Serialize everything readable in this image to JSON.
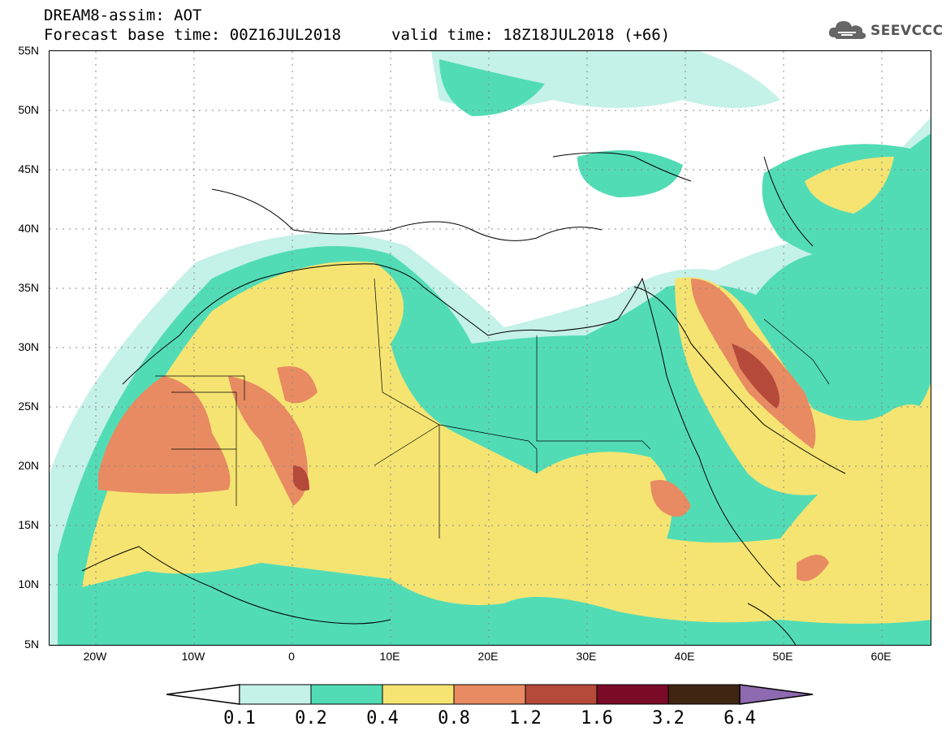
{
  "header": {
    "title": "DREAM8-assim: AOT",
    "base_time": "Forecast base time: 00Z16JUL2018",
    "valid_time": "valid time: 18Z18JUL2018 (+66)"
  },
  "logo": {
    "text": "SEEVCCC",
    "icon": "cloud-icon"
  },
  "map": {
    "lat_labels": [
      "55N",
      "50N",
      "45N",
      "40N",
      "35N",
      "30N",
      "25N",
      "20N",
      "15N",
      "10N",
      "5N"
    ],
    "lon_labels": [
      "20W",
      "10W",
      "0",
      "10E",
      "20E",
      "30E",
      "40E",
      "50E",
      "60E"
    ],
    "lat_values": [
      55,
      50,
      45,
      40,
      35,
      30,
      25,
      20,
      15,
      10,
      5
    ],
    "lon_values": [
      -20,
      -10,
      0,
      10,
      20,
      30,
      40,
      50,
      60
    ],
    "extent": {
      "lon_min": -25,
      "lon_max": 65,
      "lat_min": 5,
      "lat_max": 55
    }
  },
  "colorbar": {
    "labels": [
      "0.1",
      "0.2",
      "0.4",
      "0.8",
      "1.2",
      "1.6",
      "3.2",
      "6.4"
    ],
    "colors": [
      "#ffffff",
      "#c4f1e8",
      "#52dcb6",
      "#f5e472",
      "#e88b62",
      "#b54a3a",
      "#7a0b26",
      "#3f2512",
      "#8e6ab0"
    ]
  }
}
